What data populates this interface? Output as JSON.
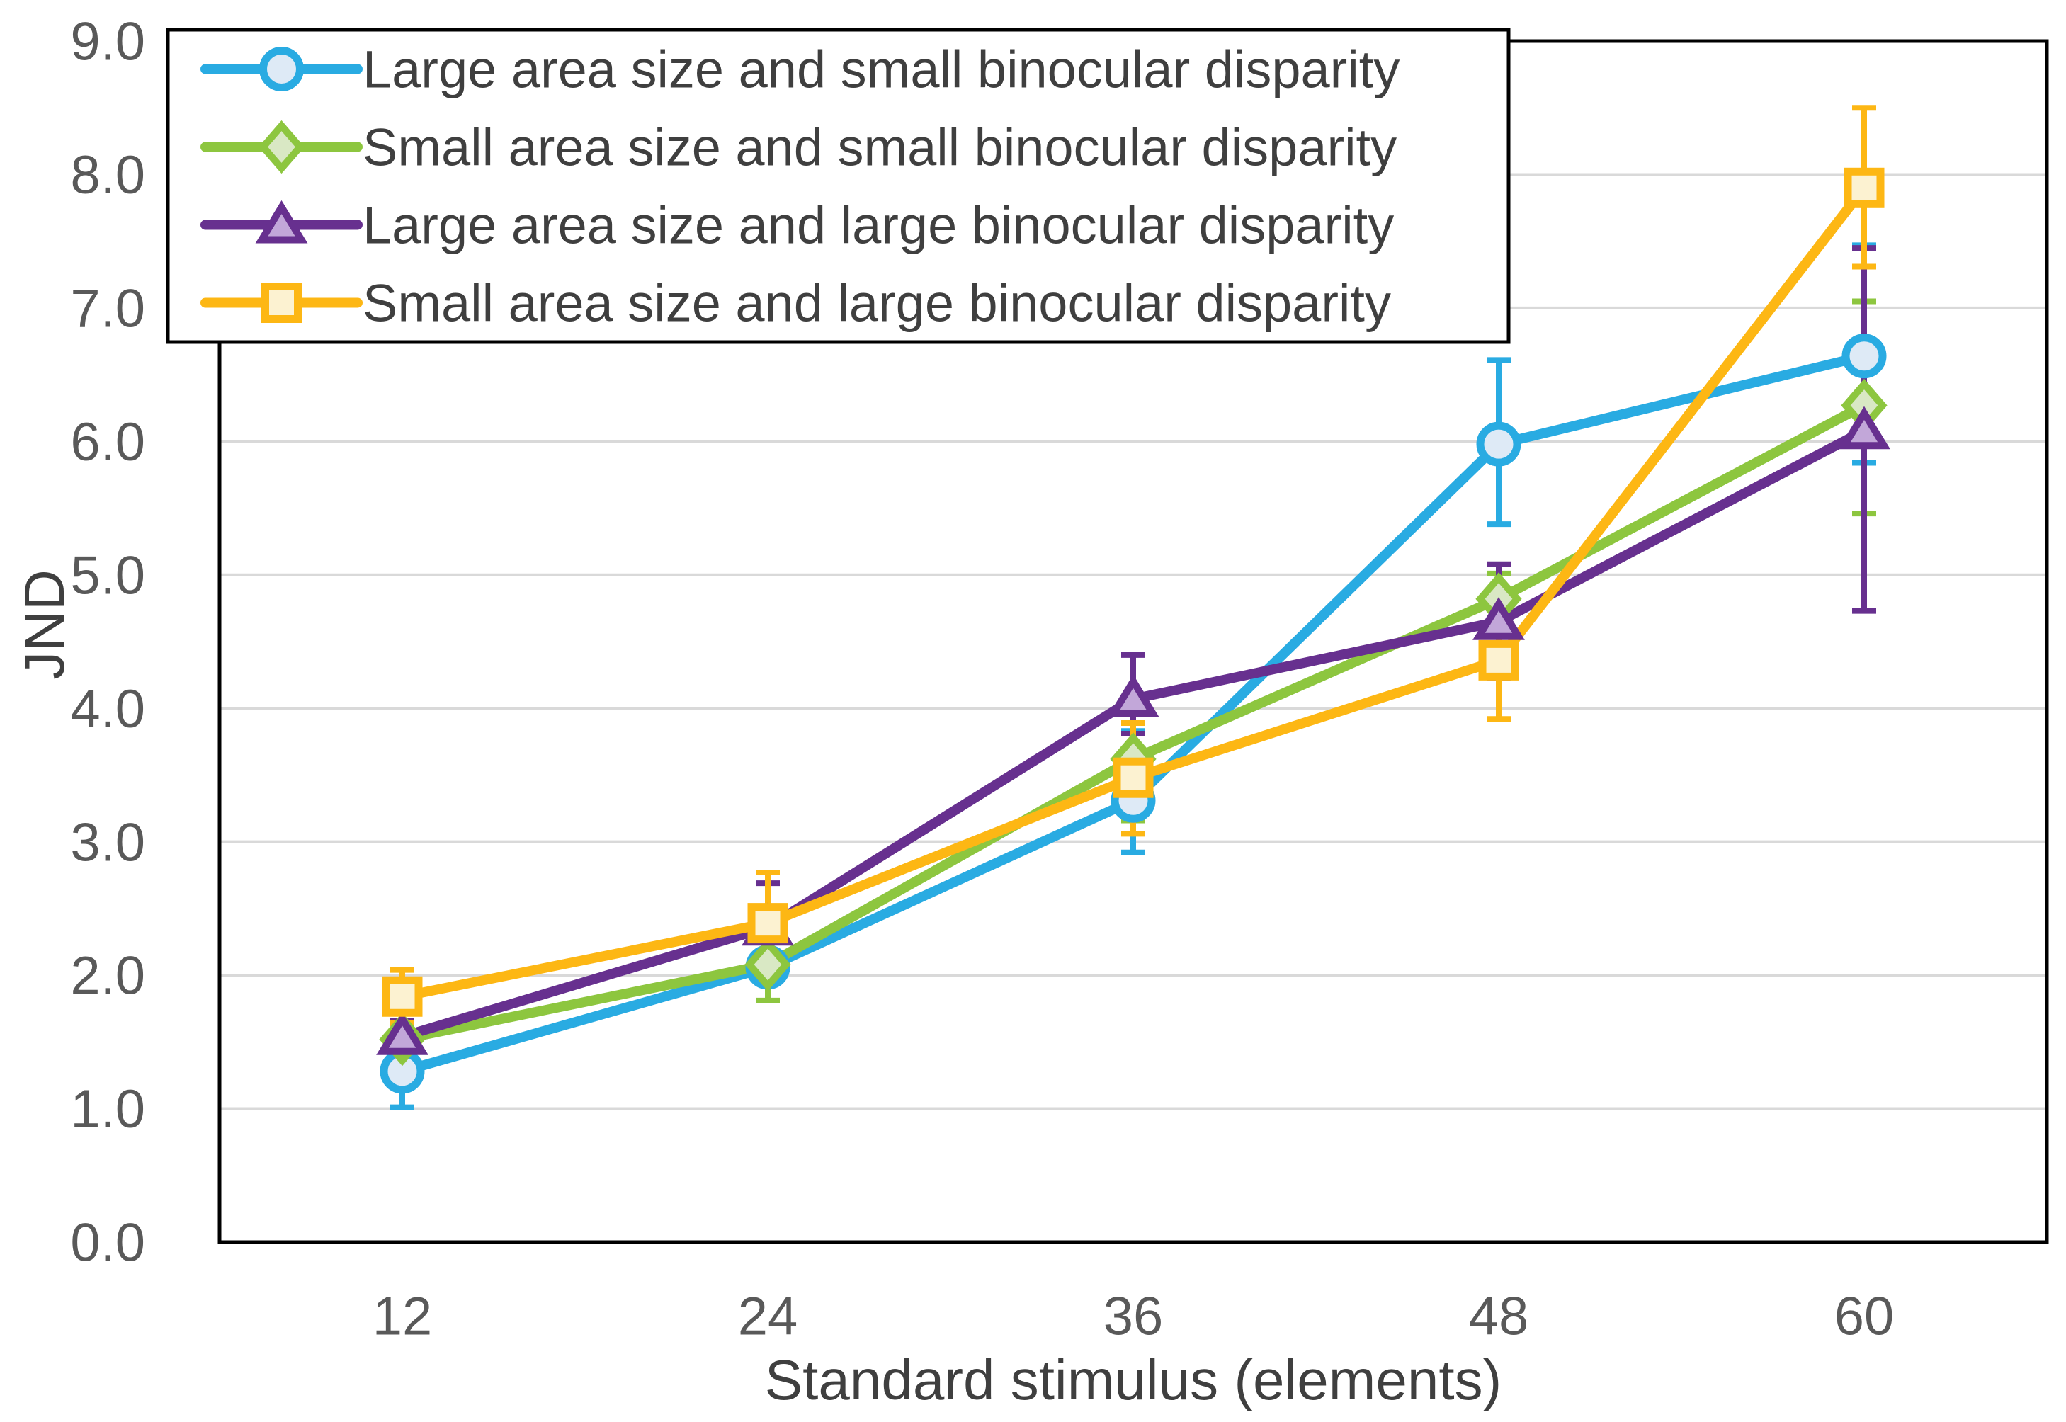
{
  "chart_data": {
    "type": "line",
    "title": "",
    "xlabel": "Standard stimulus (elements)",
    "ylabel": "JND",
    "categories": [
      "12",
      "24",
      "36",
      "48",
      "60"
    ],
    "ylim": [
      0,
      9
    ],
    "ytick_step": 1,
    "ytick_labels": [
      "0.0",
      "1.0",
      "2.0",
      "3.0",
      "4.0",
      "5.0",
      "6.0",
      "7.0",
      "8.0",
      "9.0"
    ],
    "grid": "horizontal",
    "legend_position": "top-left-inside",
    "gridline_color": "#D9D9D9",
    "border_color": "#000000",
    "axis_tick_color": "#595959",
    "axis_title_color": "#3F3F3F",
    "legend_text_color": "#3F3F3F",
    "series": [
      {
        "name": "Large area size and small binocular disparity",
        "marker": "circle",
        "color": "#29ABE2",
        "marker_fill": "#DEEAF6",
        "values": [
          1.28,
          2.06,
          3.31,
          5.98,
          6.64
        ],
        "err_plus": [
          0.27,
          0.12,
          0.52,
          0.63,
          0.83
        ],
        "err_minus": [
          0.27,
          0.12,
          0.39,
          0.6,
          0.8
        ]
      },
      {
        "name": "Small area size and small binocular disparity",
        "marker": "diamond",
        "color": "#8DC63F",
        "marker_fill": "#D9E8C4",
        "values": [
          1.52,
          2.08,
          3.62,
          4.82,
          6.27
        ],
        "err_plus": [
          0.12,
          0.27,
          0.46,
          0.19,
          0.78
        ],
        "err_minus": [
          0.12,
          0.27,
          0.46,
          0.19,
          0.81
        ]
      },
      {
        "name": "Large area size and large binocular disparity",
        "marker": "triangle",
        "color": "#67308F",
        "marker_fill": "#C2A7D9",
        "values": [
          1.54,
          2.36,
          4.07,
          4.65,
          6.08
        ],
        "err_plus": [
          0.12,
          0.33,
          0.33,
          0.43,
          1.37
        ],
        "err_minus": [
          0.12,
          0.33,
          0.26,
          0.42,
          1.35
        ]
      },
      {
        "name": "Small area size and large binocular disparity",
        "marker": "square",
        "color": "#FDB714",
        "marker_fill": "#FCF2D1",
        "values": [
          1.84,
          2.39,
          3.48,
          4.36,
          7.9
        ],
        "err_plus": [
          0.2,
          0.38,
          0.41,
          0.44,
          0.6
        ],
        "err_minus": [
          0.2,
          0.38,
          0.42,
          0.44,
          0.59
        ]
      }
    ]
  }
}
